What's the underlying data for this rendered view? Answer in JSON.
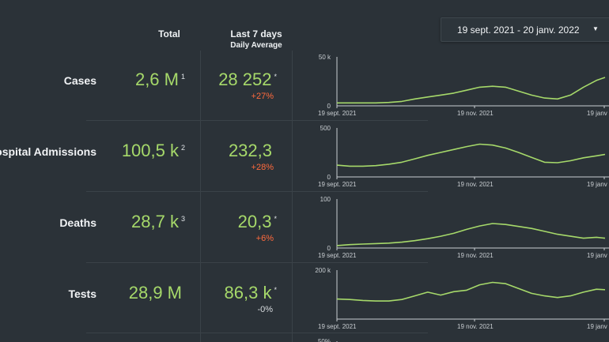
{
  "header": {
    "total_label": "Total",
    "avg_label": "Last 7 days",
    "avg_sub": "Daily Average"
  },
  "date_range": {
    "value": "19 sept. 2021 - 20 janv. 2022",
    "caret_icon": "caret-down-icon"
  },
  "colors": {
    "accent": "#a6d96a",
    "increase": "#ff6a3d",
    "neutral": "#d7dbde",
    "background": "#2b3238"
  },
  "rows": [
    {
      "label": "Cases",
      "total": "2,6 M",
      "total_note": "1",
      "avg": "28 252",
      "avg_note": "*",
      "delta": "+27%",
      "delta_type": "up"
    },
    {
      "label": "Hospital Admissions",
      "total": "100,5 k",
      "total_note": "2",
      "avg": "232,3",
      "avg_note": "",
      "delta": "+28%",
      "delta_type": "up"
    },
    {
      "label": "Deaths",
      "total": "28,7 k",
      "total_note": "3",
      "avg": "20,3",
      "avg_note": "*",
      "delta": "+6%",
      "delta_type": "up"
    },
    {
      "label": "Tests",
      "total": "28,9 M",
      "total_note": "",
      "avg": "86,3 k",
      "avg_note": "*",
      "delta": "-0%",
      "delta_type": "flat"
    }
  ],
  "chart_data": [
    {
      "type": "line",
      "title": "Cases",
      "x_ticks": [
        "19 sept. 2021",
        "19 nov. 2021",
        "19 janv"
      ],
      "y_ticks": [
        "0",
        "50 k"
      ],
      "ylim": [
        0,
        50000
      ],
      "grid": false,
      "x": [
        0,
        6,
        12,
        18,
        24,
        30,
        36,
        42,
        48,
        54,
        60,
        66,
        72,
        78,
        84,
        90,
        96,
        102,
        108,
        114,
        120,
        124
      ],
      "values": [
        3000,
        3000,
        3000,
        3000,
        3500,
        4500,
        7000,
        9000,
        11000,
        13000,
        16000,
        19000,
        20000,
        19000,
        15000,
        11000,
        8000,
        7000,
        11000,
        19000,
        26000,
        29000
      ]
    },
    {
      "type": "line",
      "title": "Hospital Admissions",
      "x_ticks": [
        "19 sept. 2021",
        "19 nov. 2021",
        "19 janv"
      ],
      "y_ticks": [
        "0",
        "500"
      ],
      "ylim": [
        0,
        500
      ],
      "grid": false,
      "x": [
        0,
        6,
        12,
        18,
        24,
        30,
        36,
        42,
        48,
        54,
        60,
        66,
        72,
        78,
        84,
        90,
        96,
        102,
        108,
        114,
        120,
        124
      ],
      "values": [
        120,
        110,
        110,
        115,
        130,
        150,
        185,
        220,
        250,
        280,
        310,
        335,
        325,
        295,
        250,
        200,
        150,
        145,
        165,
        195,
        215,
        230
      ]
    },
    {
      "type": "line",
      "title": "Deaths",
      "x_ticks": [
        "19 sept. 2021",
        "19 nov. 2021",
        "19 janv"
      ],
      "y_ticks": [
        "0",
        "100"
      ],
      "ylim": [
        0,
        100
      ],
      "grid": false,
      "x": [
        0,
        6,
        12,
        18,
        24,
        30,
        36,
        42,
        48,
        54,
        60,
        66,
        72,
        78,
        84,
        90,
        96,
        102,
        108,
        114,
        120,
        124
      ],
      "values": [
        5,
        7,
        8,
        9,
        10,
        12,
        15,
        19,
        24,
        30,
        38,
        45,
        50,
        48,
        44,
        40,
        34,
        28,
        24,
        20,
        22,
        20
      ]
    },
    {
      "type": "line",
      "title": "Tests",
      "x_ticks": [
        "19 sept. 2021",
        "19 nov. 2021",
        "19 janv"
      ],
      "y_ticks": [
        "200 k"
      ],
      "ylim": [
        0,
        200000
      ],
      "grid": false,
      "x": [
        0,
        6,
        12,
        18,
        24,
        30,
        36,
        42,
        48,
        54,
        60,
        66,
        72,
        78,
        84,
        90,
        96,
        102,
        108,
        114,
        120,
        124
      ],
      "values": [
        82000,
        80000,
        76000,
        74000,
        74000,
        80000,
        95000,
        110000,
        98000,
        112000,
        118000,
        140000,
        150000,
        145000,
        125000,
        105000,
        95000,
        88000,
        95000,
        110000,
        122000,
        120000
      ]
    },
    {
      "type": "line",
      "title": "",
      "x_ticks": [],
      "y_ticks": [
        "50%"
      ],
      "ylim": [
        0,
        50
      ],
      "grid": false,
      "x": [],
      "values": []
    }
  ]
}
